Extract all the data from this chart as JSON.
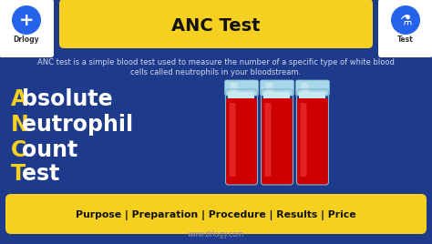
{
  "bg_color": "#1e3a8a",
  "title": "ANC Test",
  "title_bg": "#f5d020",
  "title_color": "#111111",
  "description_line1": "ANC test is a simple blood test used to measure the number of a specific type of white blood",
  "description_line2": "cells called neutrophils in your bloodstream.",
  "desc_color": "#d0d8f0",
  "acronym_lines": [
    {
      "letter": "A",
      "letter_color": "#f5d020",
      "rest": "bsolute",
      "rest_color": "#ffffff"
    },
    {
      "letter": "N",
      "letter_color": "#f5d020",
      "rest": "eutrophil",
      "rest_color": "#ffffff"
    },
    {
      "letter": "C",
      "letter_color": "#f5d020",
      "rest": "ount",
      "rest_color": "#ffffff"
    },
    {
      "letter": "T",
      "letter_color": "#f5d020",
      "rest": "est",
      "rest_color": "#ffffff"
    }
  ],
  "bottom_banner_color": "#f5d020",
  "bottom_text": "Purpose | Preparation | Procedure | Results | Price",
  "bottom_text_color": "#111111",
  "footer_text": "www.drlogy.com",
  "footer_color": "#8888bb",
  "tube_blood_color": "#cc0000",
  "tube_blood_dark": "#990000",
  "tube_cap_color": "#a8d8e8",
  "tube_cap_dark": "#7bb8cc",
  "tube_body_color": "#c8e8f0",
  "tube_outline": "#7ab8cc",
  "logo_bg": "#ffffff",
  "logo_icon_color": "#1e5dbf",
  "logo_text": "Drlogy",
  "test_text": "Test"
}
